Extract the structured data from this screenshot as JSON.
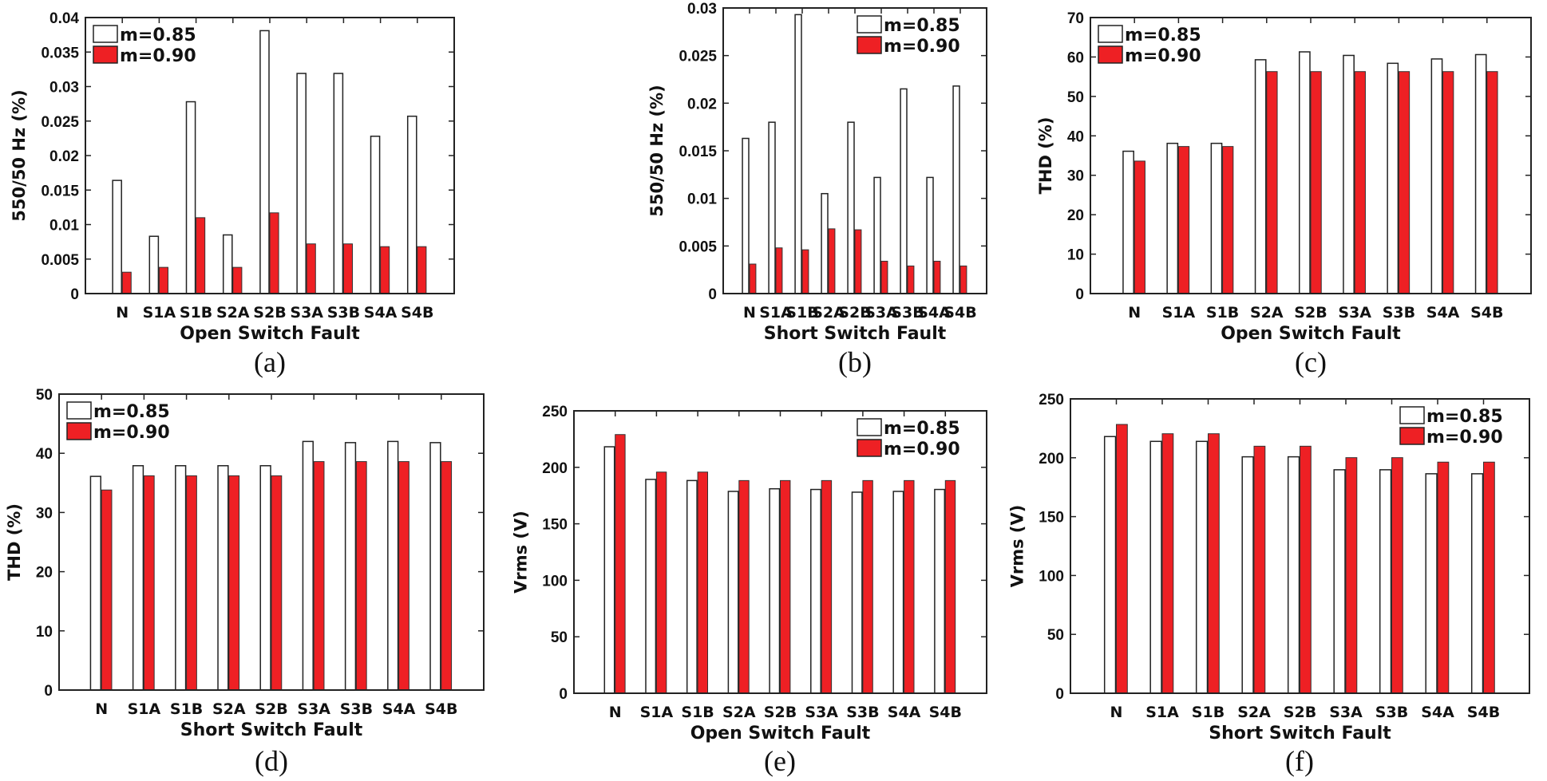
{
  "colors": {
    "series_085": "#ffffff",
    "series_090": "#ee2024",
    "axis": "#222222"
  },
  "chart_data": [
    {
      "type": "bar",
      "caption": "(a)",
      "xlabel": "Open Switch Fault",
      "ylabel": "550/50 Hz (%)",
      "ylim": [
        0,
        0.04
      ],
      "yticks": [
        "0",
        "0.005",
        "0.01",
        "0.015",
        "0.02",
        "0.025",
        "0.03",
        "0.035",
        "0.04"
      ],
      "legend_position": "top-left",
      "categories": [
        "N",
        "S1A",
        "S1B",
        "S2A",
        "S2B",
        "S3A",
        "S3B",
        "S4A",
        "S4B"
      ],
      "series": [
        {
          "name": "m=0.85",
          "values": [
            0.0164,
            0.0083,
            0.0278,
            0.0085,
            0.0381,
            0.0319,
            0.0319,
            0.0228,
            0.0257
          ]
        },
        {
          "name": "m=0.90",
          "values": [
            0.0031,
            0.0038,
            0.011,
            0.0038,
            0.0117,
            0.0072,
            0.0072,
            0.0068,
            0.0068
          ]
        }
      ]
    },
    {
      "type": "bar",
      "caption": "(b)",
      "xlabel": "Short Switch Fault",
      "ylabel": "550/50 Hz (%)",
      "ylim": [
        0,
        0.03
      ],
      "yticks": [
        "0",
        "0.005",
        "0.01",
        "0.015",
        "0.02",
        "0.025",
        "0.03"
      ],
      "legend_position": "top-right",
      "categories": [
        "N",
        "S1A",
        "S1B",
        "S2A",
        "S2B",
        "S3A",
        "S3B",
        "S4A",
        "S4B"
      ],
      "series": [
        {
          "name": "m=0.85",
          "values": [
            0.0163,
            0.018,
            0.0293,
            0.0105,
            0.018,
            0.0122,
            0.0215,
            0.0122,
            0.0218
          ]
        },
        {
          "name": "m=0.90",
          "values": [
            0.0031,
            0.0048,
            0.0046,
            0.0068,
            0.0067,
            0.0034,
            0.0029,
            0.0034,
            0.0029
          ]
        }
      ]
    },
    {
      "type": "bar",
      "caption": "(c)",
      "xlabel": "Open Switch Fault",
      "ylabel": "THD (%)",
      "ylim": [
        0,
        70
      ],
      "yticks": [
        "0",
        "10",
        "20",
        "30",
        "40",
        "50",
        "60",
        "70"
      ],
      "legend_position": "top-left",
      "categories": [
        "N",
        "S1A",
        "S1B",
        "S2A",
        "S2B",
        "S3A",
        "S3B",
        "S4A",
        "S4B"
      ],
      "series": [
        {
          "name": "m=0.85",
          "values": [
            36.1,
            38.1,
            38.1,
            59.3,
            61.3,
            60.4,
            58.4,
            59.5,
            60.6
          ]
        },
        {
          "name": "m=0.90",
          "values": [
            33.6,
            37.3,
            37.3,
            56.3,
            56.3,
            56.3,
            56.3,
            56.3,
            56.3
          ]
        }
      ]
    },
    {
      "type": "bar",
      "caption": "(d)",
      "xlabel": "Short Switch Fault",
      "ylabel": "THD (%)",
      "ylim": [
        0,
        50
      ],
      "yticks": [
        "0",
        "10",
        "20",
        "30",
        "40",
        "50"
      ],
      "legend_position": "top-left",
      "categories": [
        "N",
        "S1A",
        "S1B",
        "S2A",
        "S2B",
        "S3A",
        "S3B",
        "S4A",
        "S4B"
      ],
      "series": [
        {
          "name": "m=0.85",
          "values": [
            36.1,
            37.9,
            37.9,
            37.9,
            37.9,
            42.0,
            41.8,
            42.0,
            41.8
          ]
        },
        {
          "name": "m=0.90",
          "values": [
            33.8,
            36.2,
            36.2,
            36.2,
            36.2,
            38.6,
            38.6,
            38.6,
            38.6
          ]
        }
      ]
    },
    {
      "type": "bar",
      "caption": "(e)",
      "xlabel": "Open Switch Fault",
      "ylabel": "Vrms (V)",
      "ylim": [
        0,
        250
      ],
      "yticks": [
        "0",
        "50",
        "100",
        "150",
        "200",
        "250"
      ],
      "legend_position": "top-right",
      "categories": [
        "N",
        "S1A",
        "S1B",
        "S2A",
        "S2B",
        "S3A",
        "S3B",
        "S4A",
        "S4B"
      ],
      "series": [
        {
          "name": "m=0.85",
          "values": [
            218.2,
            189.3,
            188.3,
            178.7,
            181.0,
            180.4,
            178.0,
            178.7,
            180.4
          ]
        },
        {
          "name": "m=0.90",
          "values": [
            229.0,
            195.8,
            195.8,
            188.3,
            188.3,
            188.3,
            188.3,
            188.3,
            188.3
          ]
        }
      ]
    },
    {
      "type": "bar",
      "caption": "(f)",
      "xlabel": "Short Switch Fault",
      "ylabel": "Vrms (V)",
      "ylim": [
        0,
        250
      ],
      "yticks": [
        "0",
        "50",
        "100",
        "150",
        "200",
        "250"
      ],
      "legend_position": "top-right",
      "categories": [
        "N",
        "S1A",
        "S1B",
        "S2A",
        "S2B",
        "S3A",
        "S3B",
        "S4A",
        "S4B"
      ],
      "series": [
        {
          "name": "m=0.85",
          "values": [
            218.0,
            213.9,
            213.9,
            200.8,
            200.8,
            189.8,
            189.8,
            186.4,
            186.4
          ]
        },
        {
          "name": "m=0.90",
          "values": [
            228.3,
            220.4,
            220.4,
            209.8,
            209.8,
            200.1,
            200.1,
            196.3,
            196.3
          ]
        }
      ]
    }
  ]
}
